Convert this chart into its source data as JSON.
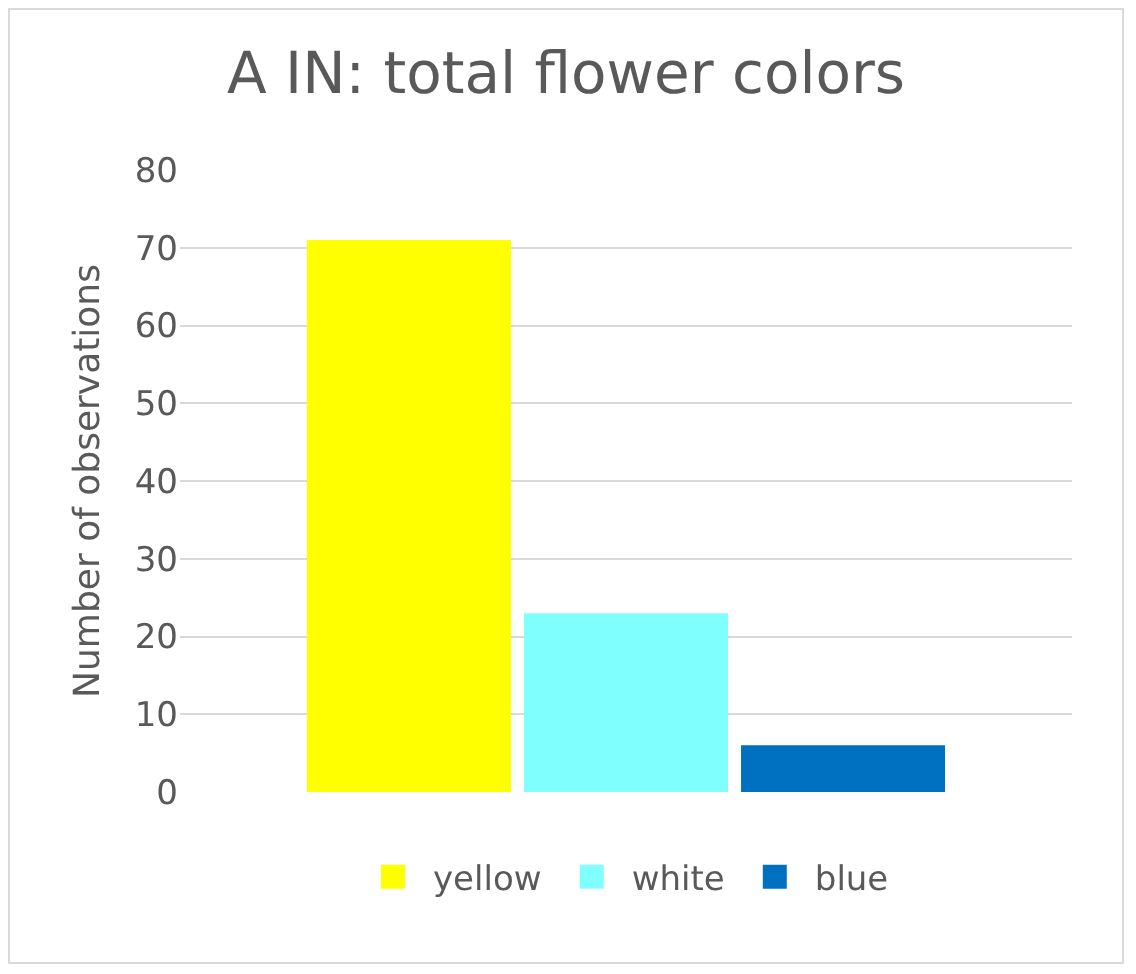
{
  "chart_data": {
    "type": "bar",
    "title": "A IN: total flower colors",
    "ylabel": "Number of observations",
    "categories": [
      null
    ],
    "series": [
      {
        "name": "yellow",
        "color": "#ffff00",
        "values": [
          71
        ]
      },
      {
        "name": "white",
        "color": "#80ffff",
        "values": [
          23
        ]
      },
      {
        "name": "blue",
        "color": "#0070c0",
        "values": [
          6
        ]
      }
    ],
    "ylim": [
      0,
      80
    ],
    "yticks": [
      0,
      10,
      20,
      30,
      40,
      50,
      60,
      70,
      80
    ],
    "grid": "y",
    "legend": "bottom"
  }
}
